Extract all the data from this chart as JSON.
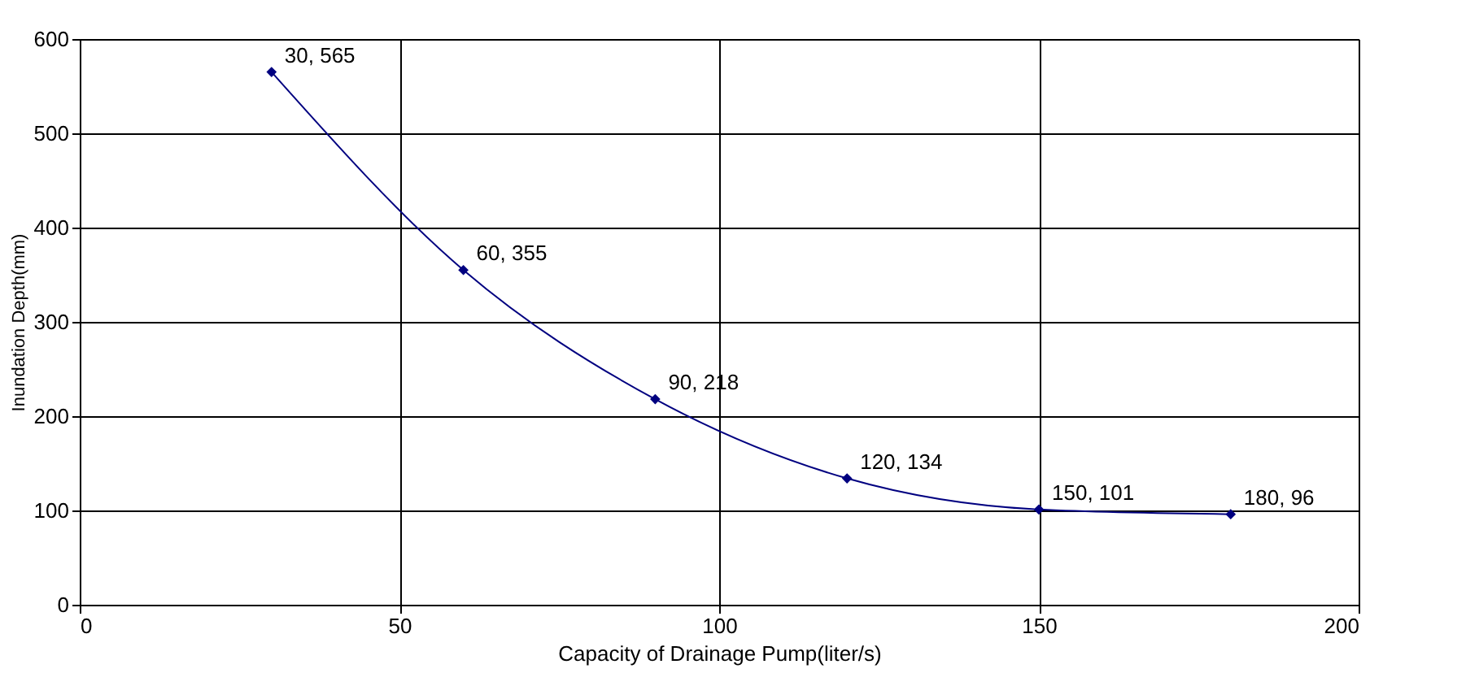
{
  "chart_data": {
    "type": "line",
    "xlabel": "Capacity of Drainage Pump(liter/s)",
    "ylabel": "Inundation Depth(mm)",
    "x": [
      30,
      60,
      90,
      120,
      150,
      180
    ],
    "series": [
      {
        "color": "#000080",
        "values": [
          565,
          355,
          218,
          134,
          101,
          96
        ],
        "value_labels": [
          "30, 565",
          "60, 355",
          "90, 218",
          "120, 134",
          "150, 101",
          "180, 96"
        ]
      }
    ],
    "xlim": [
      0,
      200
    ],
    "xticks": [
      0,
      50,
      100,
      150,
      200
    ],
    "ylim": [
      0,
      600
    ],
    "yticks": [
      0,
      100,
      200,
      300,
      400,
      500,
      600
    ],
    "grid": true,
    "marker": "diamond",
    "line_style": "solid"
  }
}
